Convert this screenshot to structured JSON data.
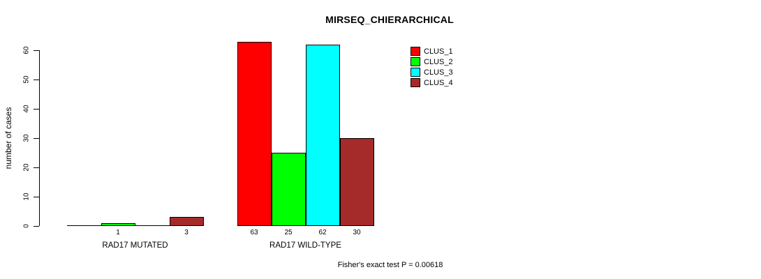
{
  "chart_data": {
    "type": "bar",
    "title": "MIRSEQ_CHIERARCHICAL",
    "ylabel": "number of cases",
    "xlabel": "",
    "ylim": [
      0,
      63
    ],
    "yticks": [
      0,
      10,
      20,
      30,
      40,
      50,
      60
    ],
    "grid": false,
    "legend_position": "top-right-inside",
    "series": [
      {
        "name": "CLUS_1",
        "color": "#FF0000"
      },
      {
        "name": "CLUS_2",
        "color": "#00FF00"
      },
      {
        "name": "CLUS_3",
        "color": "#00FFFF"
      },
      {
        "name": "CLUS_4",
        "color": "#A52A2A"
      }
    ],
    "groups": [
      {
        "label": "RAD17 MUTATED",
        "values": [
          0,
          1,
          0,
          3
        ]
      },
      {
        "label": "RAD17 WILD-TYPE",
        "values": [
          63,
          25,
          62,
          30
        ]
      }
    ],
    "show_value_labels_for_zero": false,
    "annotation": "Fisher's exact test P = 0.00618",
    "colors": {
      "axis": "#000000",
      "text": "#000000",
      "background": "#FFFFFF"
    }
  }
}
